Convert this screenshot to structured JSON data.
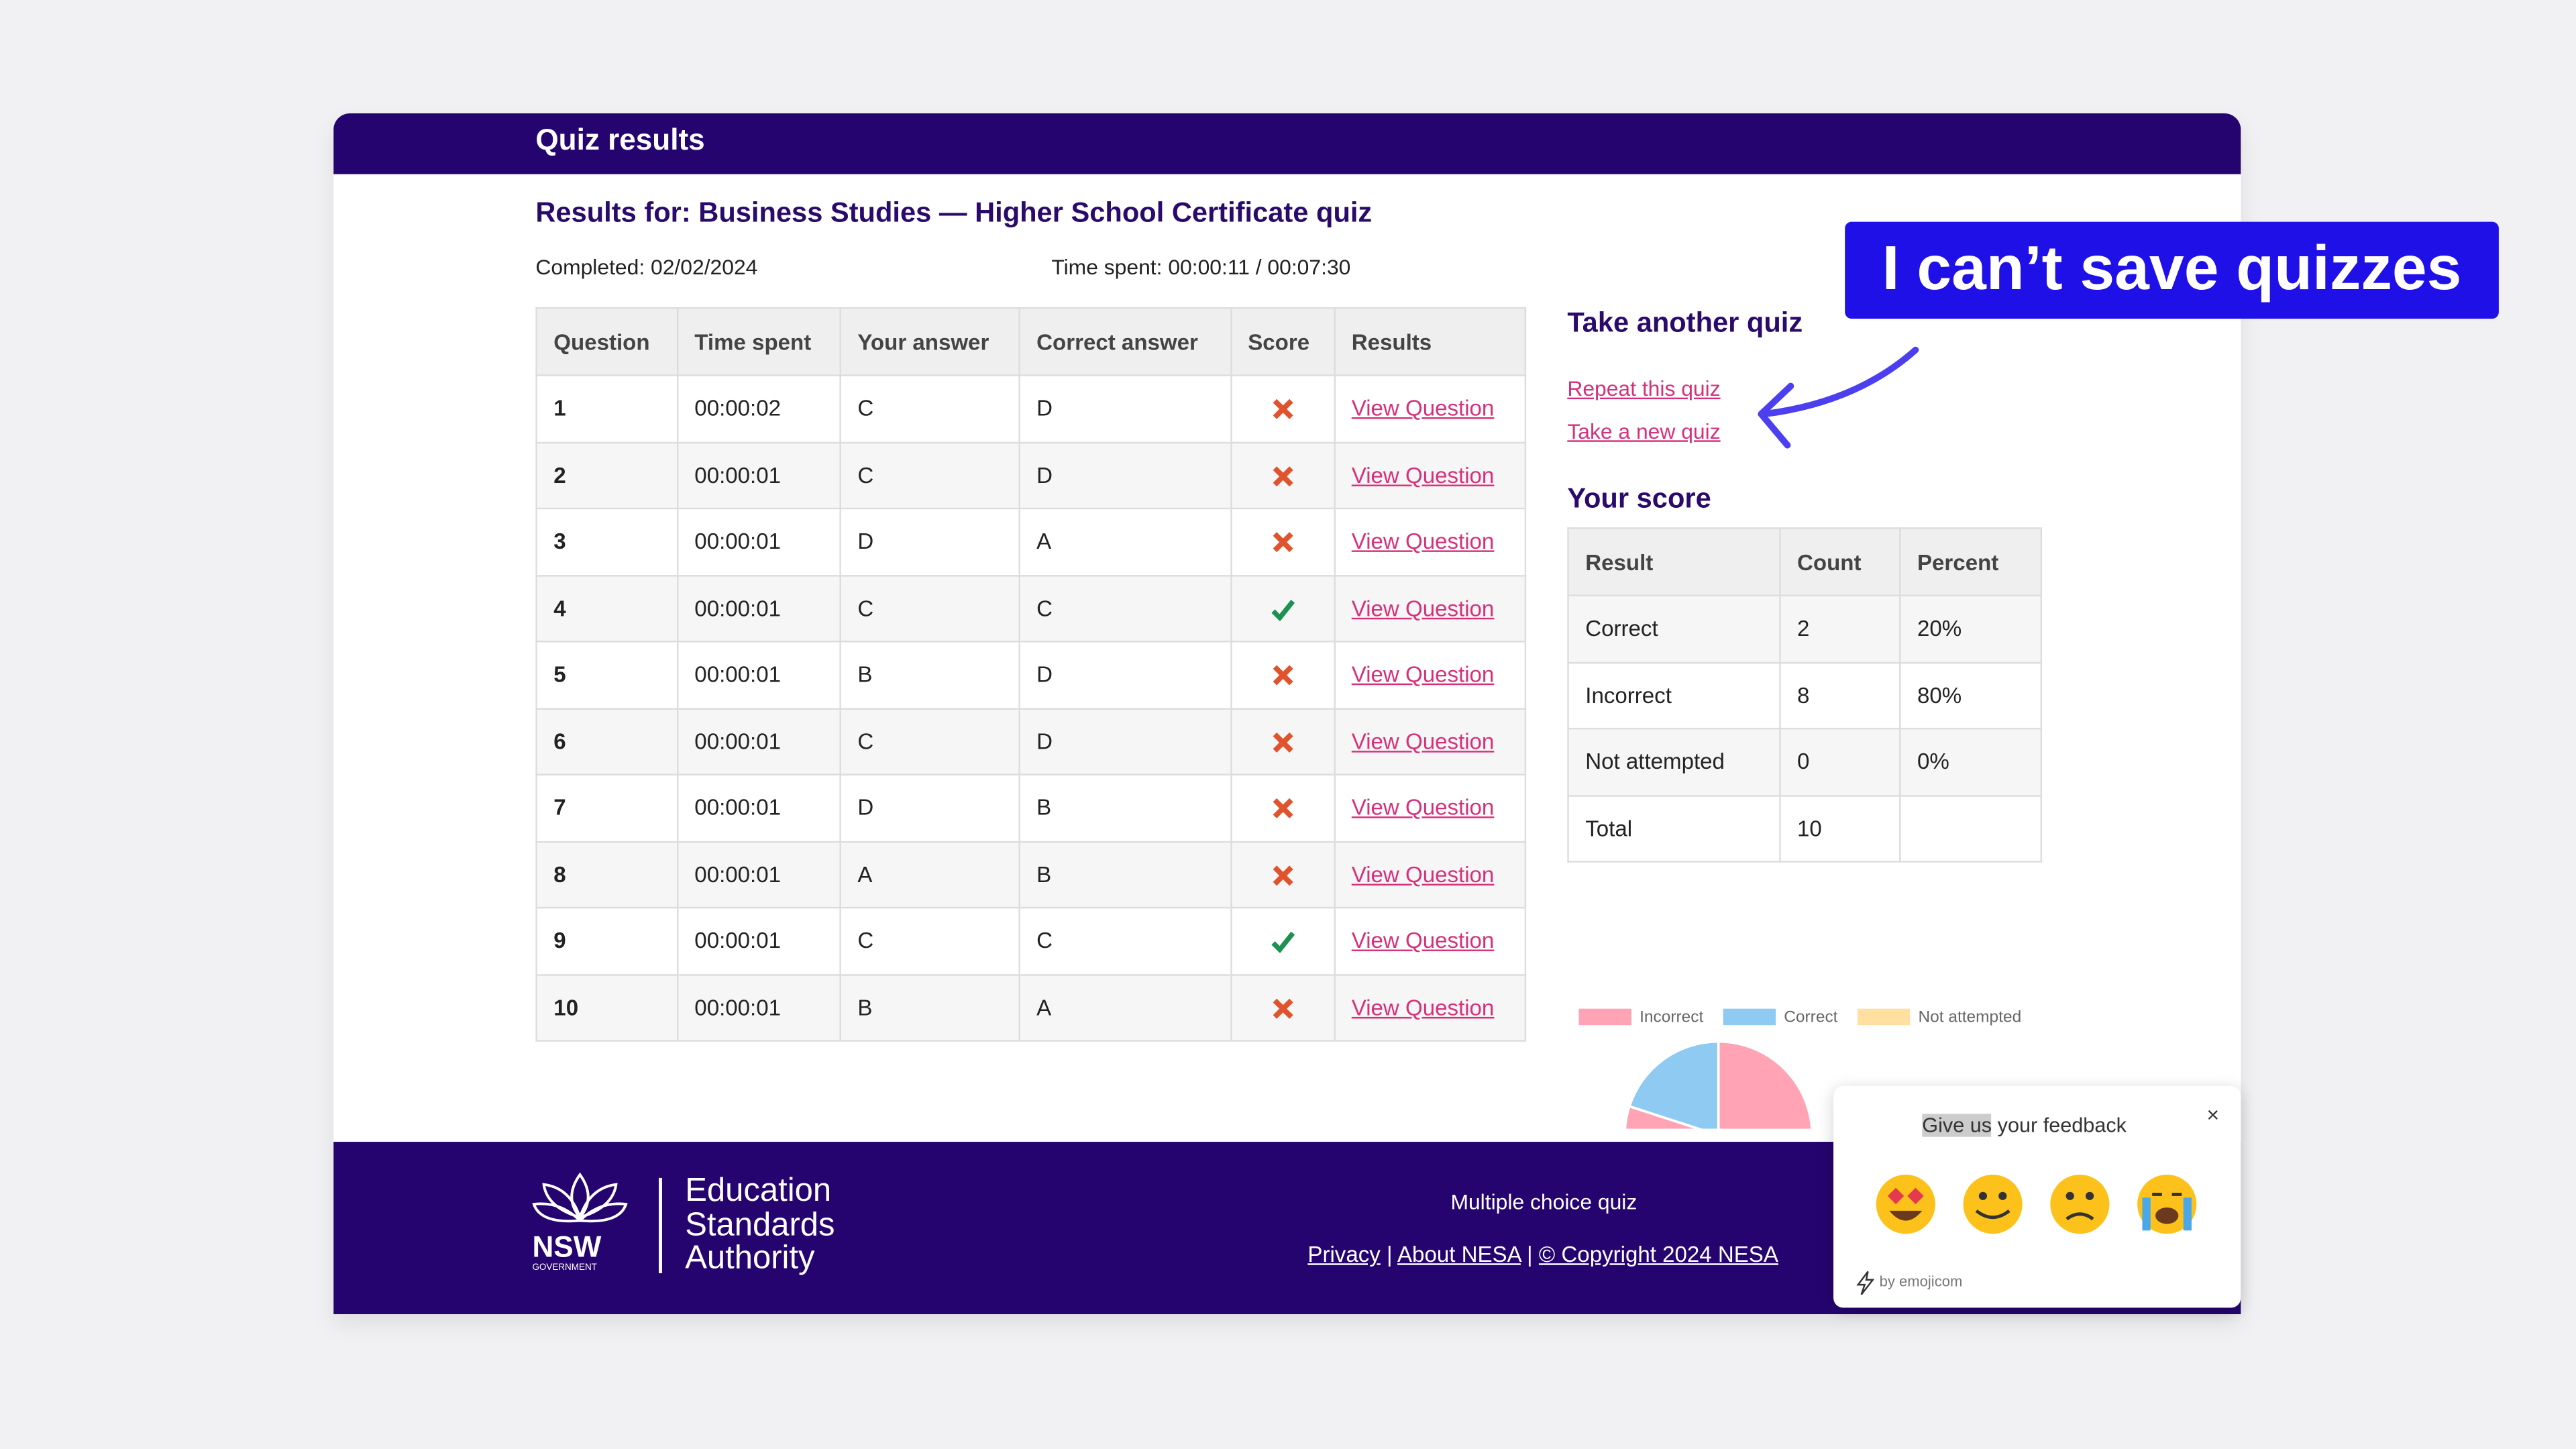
{
  "annotation": "I can’t save quizzes",
  "header": {
    "title": "Quiz results"
  },
  "results": {
    "heading": "Results for: Business Studies — Higher School Certificate quiz",
    "completed": "Completed: 02/02/2024",
    "time_spent": "Time spent: 00:00:11 / 00:07:30"
  },
  "table": {
    "columns": [
      "Question",
      "Time spent",
      "Your answer",
      "Correct answer",
      "Score",
      "Results"
    ],
    "rows": [
      [
        "1",
        "00:00:02",
        "C",
        "D",
        false,
        "View Question"
      ],
      [
        "2",
        "00:00:01",
        "C",
        "D",
        false,
        "View Question"
      ],
      [
        "3",
        "00:00:01",
        "D",
        "A",
        false,
        "View Question"
      ],
      [
        "4",
        "00:00:01",
        "C",
        "C",
        true,
        "View Question"
      ],
      [
        "5",
        "00:00:01",
        "B",
        "D",
        false,
        "View Question"
      ],
      [
        "6",
        "00:00:01",
        "C",
        "D",
        false,
        "View Question"
      ],
      [
        "7",
        "00:00:01",
        "D",
        "B",
        false,
        "View Question"
      ],
      [
        "8",
        "00:00:01",
        "A",
        "B",
        false,
        "View Question"
      ],
      [
        "9",
        "00:00:01",
        "C",
        "C",
        true,
        "View Question"
      ],
      [
        "10",
        "00:00:01",
        "B",
        "A",
        false,
        "View Question"
      ]
    ]
  },
  "sidebar": {
    "another_heading": "Take another quiz",
    "links": [
      "Repeat this quiz",
      "Take a new quiz"
    ],
    "score_heading": "Your score",
    "score_table": {
      "columns": [
        "Result",
        "Count",
        "Percent"
      ],
      "rows": [
        [
          "Correct",
          2,
          "20%"
        ],
        [
          "Incorrect",
          8,
          "80%"
        ],
        [
          "Not attempted",
          0,
          "0%"
        ],
        [
          "Total",
          10
        ]
      ]
    }
  },
  "chart_data": {
    "type": "pie",
    "labels": [
      "Incorrect",
      "Correct",
      "Not attempted"
    ],
    "values": [
      8,
      2,
      0
    ],
    "colors": [
      "#ffa3b5",
      "#8ecaf2",
      "#ffe0a0"
    ]
  },
  "footer": {
    "logo": [
      "NSW",
      "GOVERNMENT"
    ],
    "authority": [
      "Education",
      "Standards",
      "Authority"
    ],
    "subtitle": "Multiple choice quiz",
    "links": [
      "Privacy",
      "About NESA",
      "© Copyright 2024 NESA"
    ],
    "separator": "|"
  },
  "feedback": {
    "title_highlight": "Give us",
    "title_rest": "your feedback",
    "credit": "by emojicom"
  }
}
